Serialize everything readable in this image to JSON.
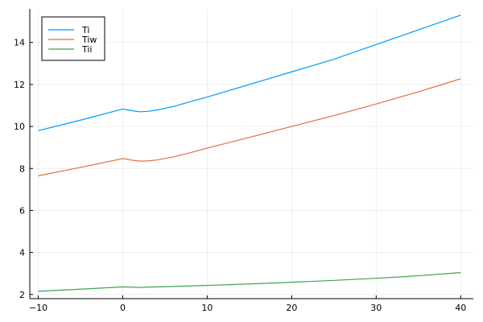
{
  "chart_data": {
    "type": "line",
    "title": "",
    "xlabel": "",
    "ylabel": "",
    "xlim": [
      -11,
      41.5
    ],
    "ylim": [
      1.8,
      15.6
    ],
    "grid": true,
    "legend": "top-left",
    "x_ticks": [
      -10,
      0,
      10,
      20,
      30,
      40
    ],
    "y_ticks": [
      2,
      4,
      6,
      8,
      10,
      12,
      14
    ],
    "x_tick_labels": [
      "−10",
      "0",
      "10",
      "20",
      "30",
      "40"
    ],
    "y_tick_labels": [
      "2",
      "4",
      "6",
      "8",
      "10",
      "12",
      "14"
    ],
    "series": [
      {
        "name": "Ti",
        "color": "#009af9",
        "x": [
          -10,
          -5,
          0,
          1,
          2,
          3,
          4,
          6,
          8,
          10,
          15,
          20,
          25,
          30,
          35,
          40
        ],
        "y": [
          9.8,
          10.3,
          10.83,
          10.76,
          10.7,
          10.72,
          10.78,
          10.95,
          11.18,
          11.4,
          12.0,
          12.6,
          13.2,
          13.9,
          14.6,
          15.3
        ]
      },
      {
        "name": "Tiw",
        "color": "#e26f46",
        "x": [
          -10,
          -5,
          0,
          1,
          2,
          3,
          4,
          6,
          8,
          10,
          15,
          20,
          25,
          30,
          35,
          40
        ],
        "y": [
          7.65,
          8.05,
          8.47,
          8.4,
          8.35,
          8.36,
          8.4,
          8.55,
          8.75,
          8.97,
          9.48,
          10.0,
          10.52,
          11.07,
          11.65,
          12.27
        ]
      },
      {
        "name": "Tii",
        "color": "#3da44d",
        "x": [
          -10,
          -5,
          0,
          1,
          2,
          3,
          4,
          6,
          8,
          10,
          15,
          20,
          25,
          30,
          35,
          40
        ],
        "y": [
          2.15,
          2.25,
          2.36,
          2.35,
          2.33,
          2.35,
          2.36,
          2.38,
          2.41,
          2.43,
          2.5,
          2.58,
          2.67,
          2.77,
          2.89,
          3.04
        ]
      }
    ]
  }
}
